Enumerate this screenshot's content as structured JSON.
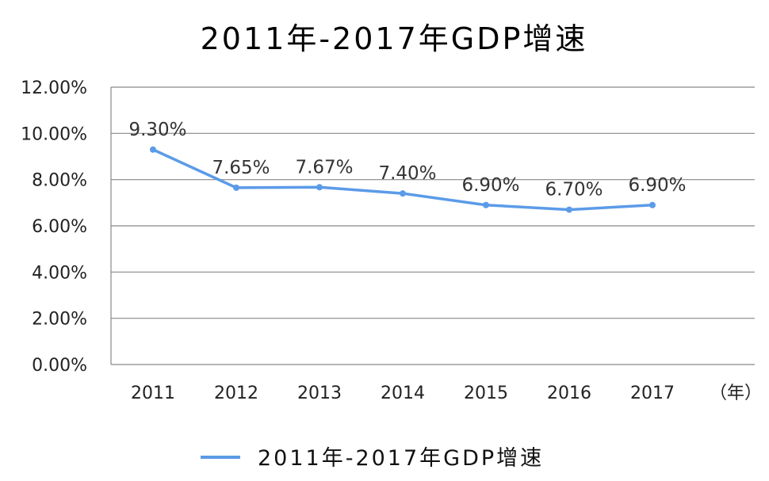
{
  "chart_data": {
    "type": "line",
    "title": "2011年-2017年GDP增速",
    "categories": [
      "2011",
      "2012",
      "2013",
      "2014",
      "2015",
      "2016",
      "2017"
    ],
    "x_unit_label": "（年）",
    "series": [
      {
        "name": "2011年-2017年GDP增速",
        "values": [
          9.3,
          7.65,
          7.67,
          7.4,
          6.9,
          6.7,
          6.9
        ],
        "labels": [
          "9.30%",
          "7.65%",
          "7.67%",
          "7.40%",
          "6.90%",
          "6.70%",
          "6.90%"
        ],
        "color": "#5b9be8"
      }
    ],
    "y_ticks": [
      "0.00%",
      "2.00%",
      "4.00%",
      "6.00%",
      "8.00%",
      "10.00%",
      "12.00%"
    ],
    "ylim": [
      0,
      12
    ],
    "grid": true,
    "legend_position": "bottom"
  }
}
